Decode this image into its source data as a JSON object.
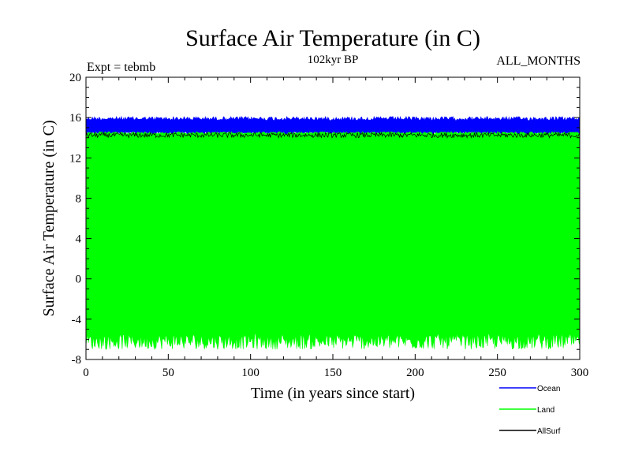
{
  "chart_data": {
    "type": "line",
    "title": "Surface Air Temperature (in C)",
    "subtitle": "102kyr BP",
    "experiment_label": "Expt = tebmb",
    "period_label": "ALL_MONTHS",
    "xlabel": "Time (in years since start)",
    "ylabel": "Surface Air Temperature (in C)",
    "xlim": [
      0,
      300
    ],
    "ylim": [
      -8,
      20
    ],
    "x_ticks": [
      0,
      50,
      100,
      150,
      200,
      250,
      300
    ],
    "y_ticks": [
      -8,
      -4,
      0,
      4,
      8,
      12,
      16,
      20
    ],
    "grid": false,
    "legend_position": "bottom-right",
    "series": [
      {
        "name": "Ocean",
        "color": "#0000ff",
        "approx_min": 14.3,
        "approx_max": 16.1,
        "mean": 15.2
      },
      {
        "name": "Land",
        "color": "#00ff00",
        "approx_min": -7.0,
        "approx_max": 14.6,
        "mean": 4.0
      },
      {
        "name": "AllSurf",
        "color": "#000000",
        "approx_min": 14.0,
        "approx_max": 14.5,
        "mean": 14.3
      }
    ]
  }
}
